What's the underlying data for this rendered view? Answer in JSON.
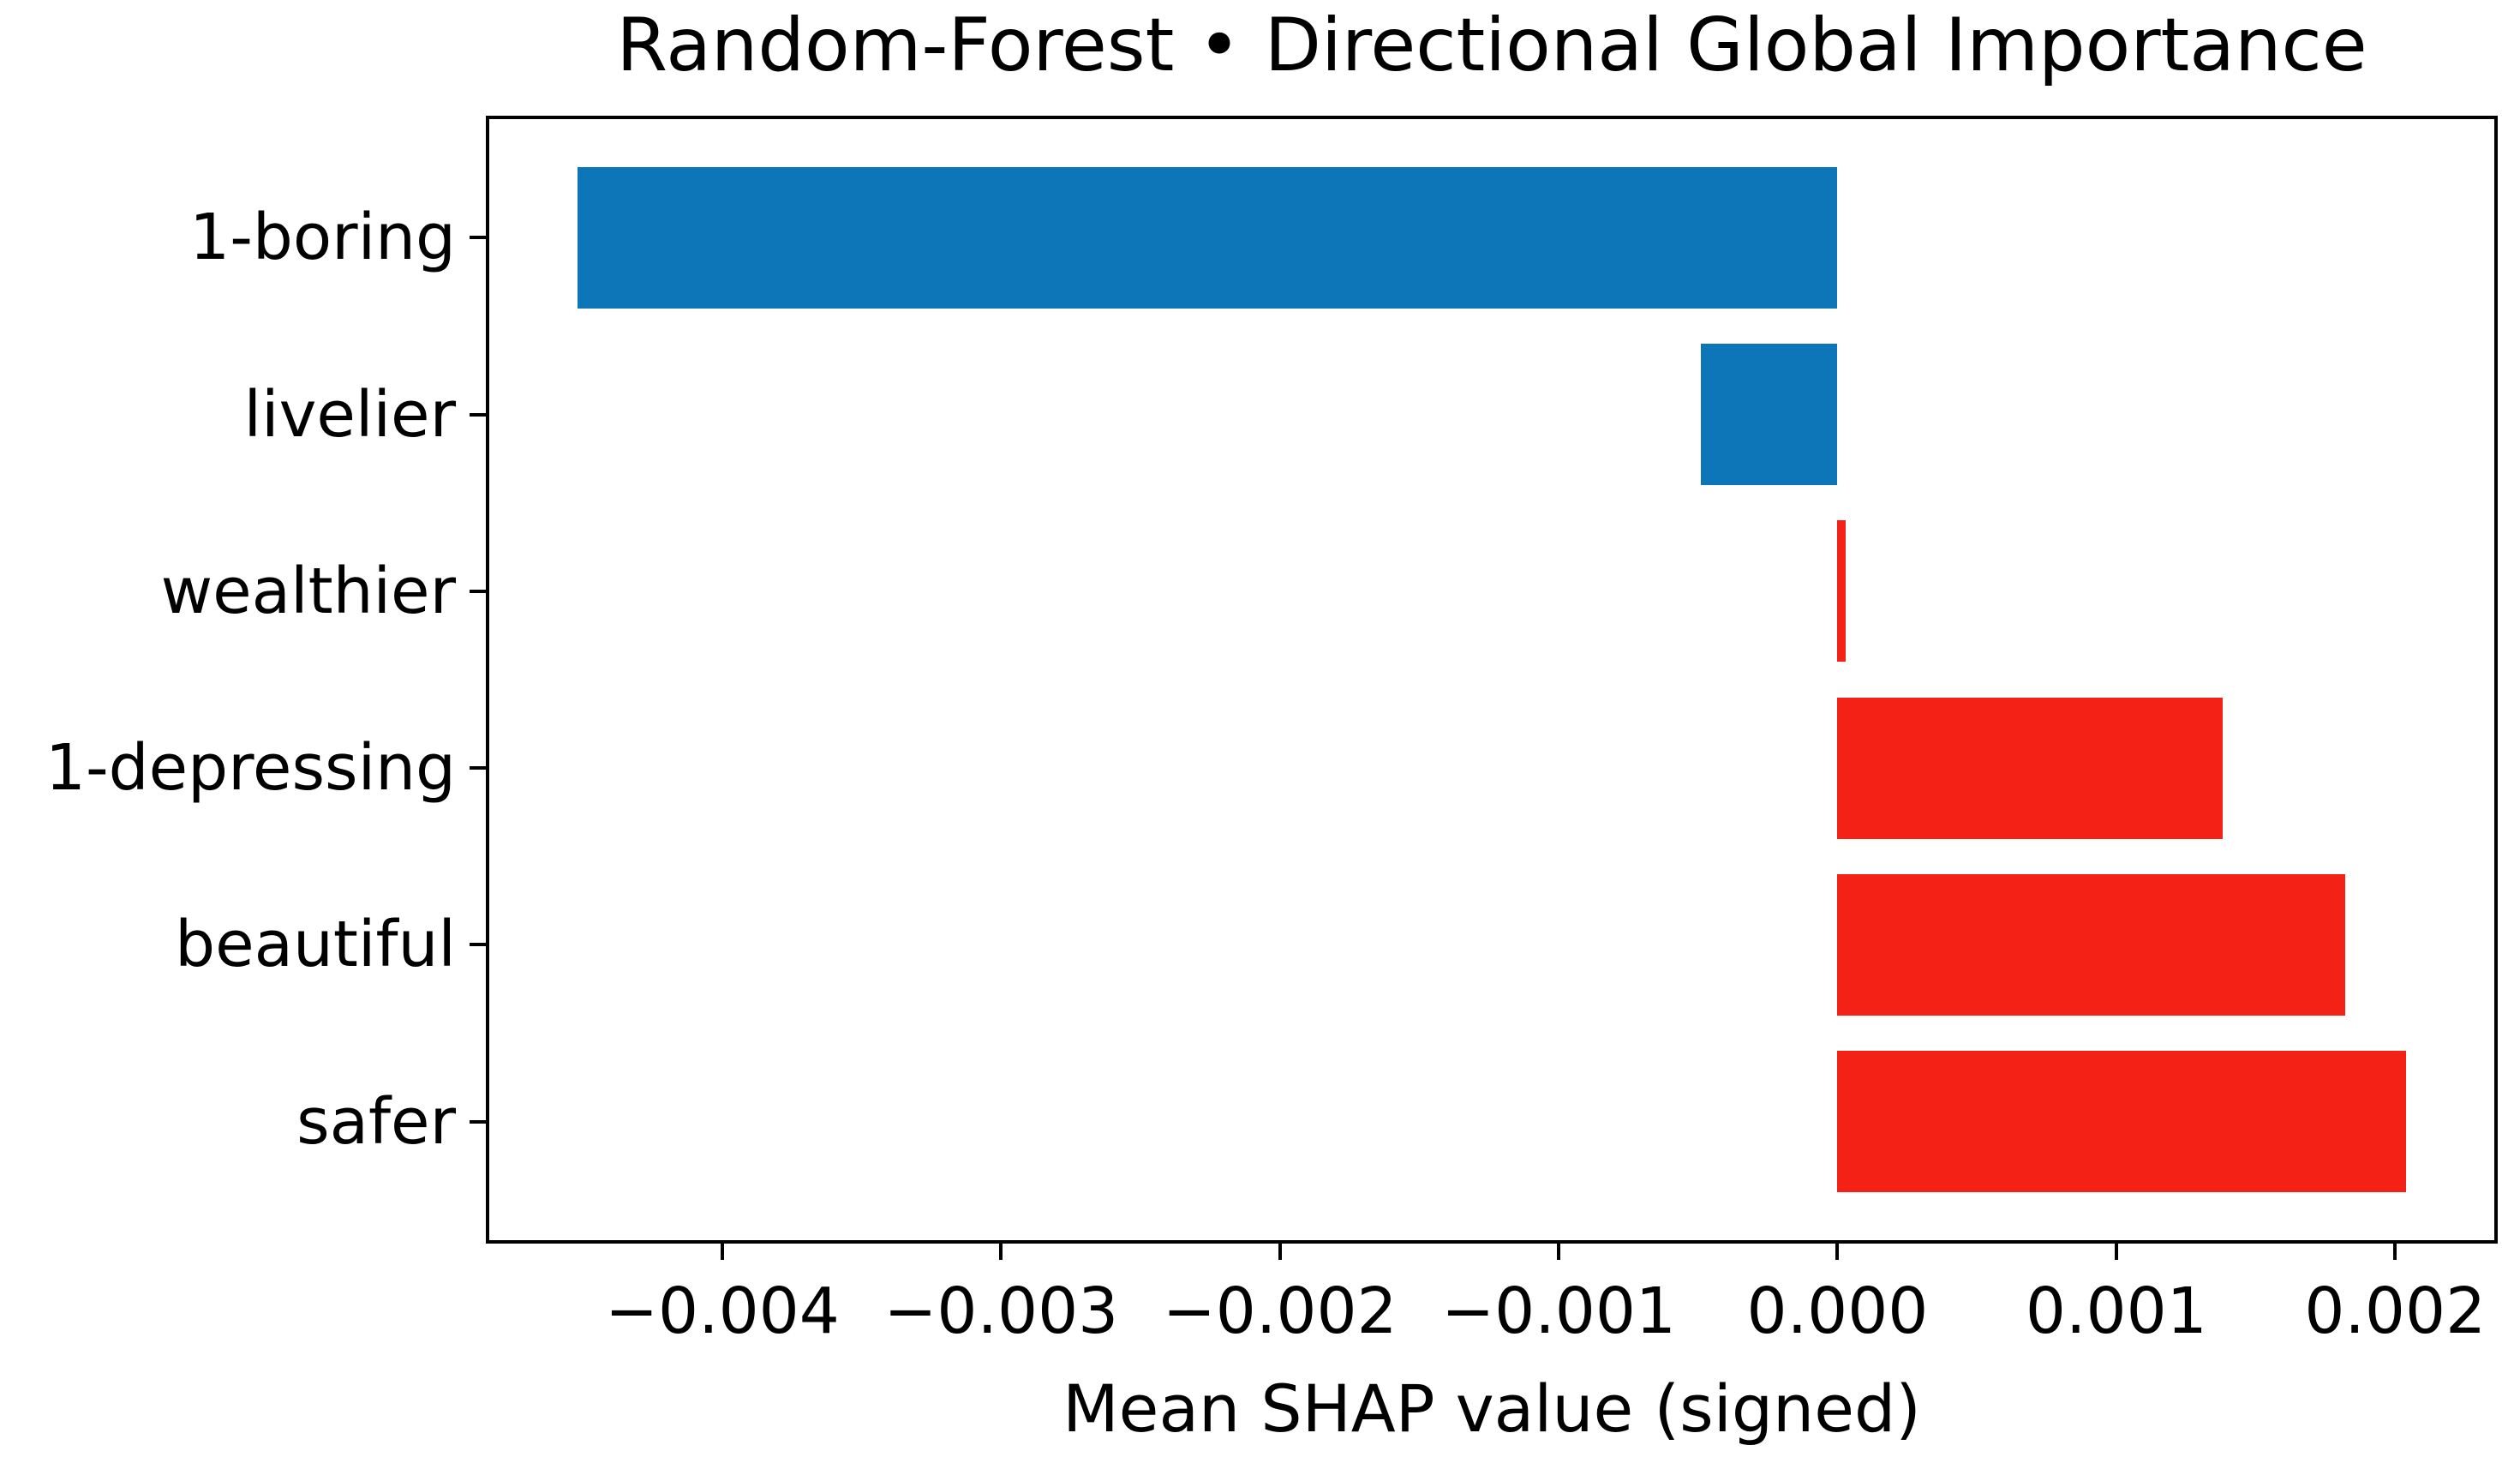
{
  "title": "Random-Forest • Directional Global Importance",
  "chart_data": {
    "type": "bar",
    "orientation": "horizontal",
    "title": "Random-Forest • Directional Global Importance",
    "xlabel": "Mean SHAP value (signed)",
    "ylabel": "",
    "categories": [
      "1-boring",
      "livelier",
      "wealthier",
      "1-depressing",
      "beautiful",
      "safer"
    ],
    "values": [
      -0.00452,
      -0.00049,
      3e-05,
      0.00138,
      0.00182,
      0.00204
    ],
    "bar_colors": [
      "#0d76b8",
      "#0d76b8",
      "#f42116",
      "#f42116",
      "#f42116",
      "#f42116"
    ],
    "negative_color": "#0d76b8",
    "positive_color": "#f42116",
    "xlim": [
      -0.004848,
      0.002368
    ],
    "x_ticks": [
      -0.004,
      -0.003,
      -0.002,
      -0.001,
      0.0,
      0.001,
      0.002
    ],
    "x_tick_labels": [
      "−0.004",
      "−0.003",
      "−0.002",
      "−0.001",
      "0.000",
      "0.001",
      "0.002"
    ],
    "grid": false,
    "legend": false,
    "spine_color": "#000000",
    "text_color": "#000000"
  }
}
